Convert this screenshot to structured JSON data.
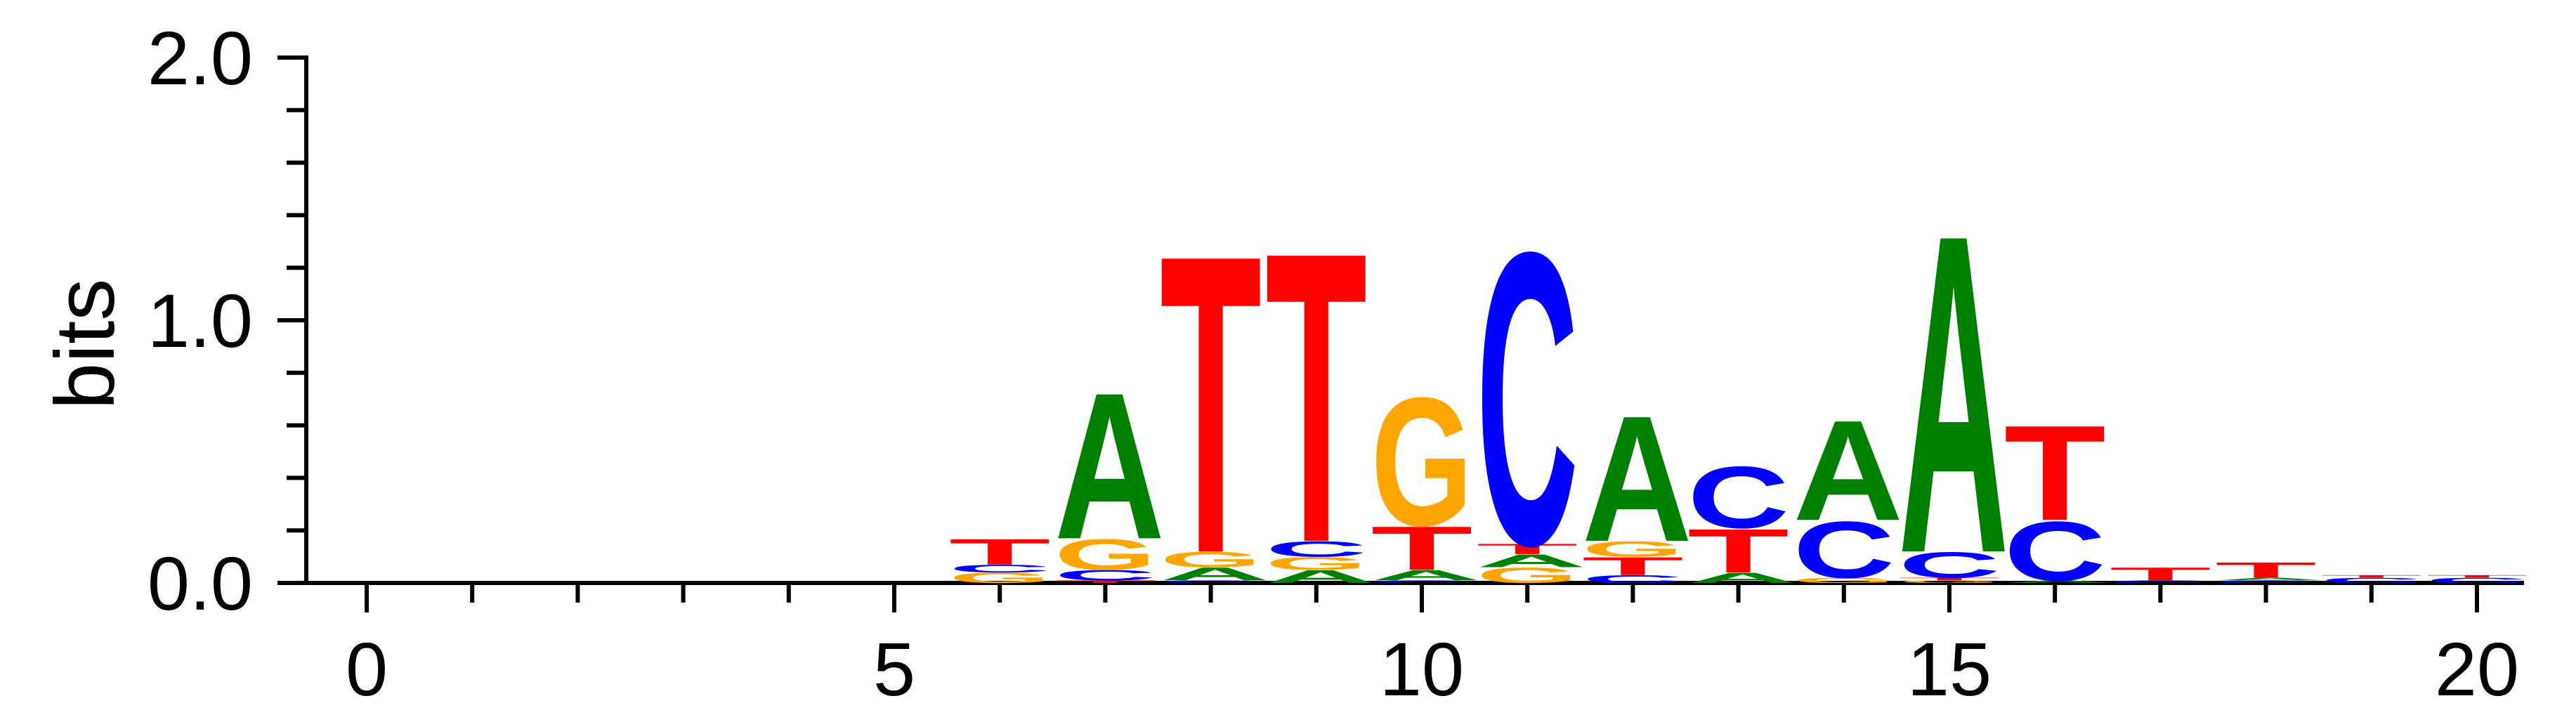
{
  "chart_data": {
    "type": "sequence-logo",
    "ylabel": "bits",
    "ylim": [
      0,
      2
    ],
    "yticks": [
      "0.0",
      "1.0",
      "2.0"
    ],
    "xticks": [
      "0",
      "5",
      "10",
      "15",
      "20"
    ],
    "colors": {
      "A": "#008000",
      "C": "#0000ff",
      "G": "#ffa500",
      "T": "#ff0000"
    },
    "positions": [
      {
        "pos": 6,
        "stack": [
          [
            "G",
            0.04
          ],
          [
            "C",
            0.03
          ],
          [
            "T",
            0.1
          ]
        ]
      },
      {
        "pos": 7,
        "stack": [
          [
            "T",
            0.01
          ],
          [
            "C",
            0.04
          ],
          [
            "G",
            0.12
          ],
          [
            "A",
            0.57
          ]
        ]
      },
      {
        "pos": 8,
        "stack": [
          [
            "C",
            0.01
          ],
          [
            "A",
            0.05
          ],
          [
            "G",
            0.06
          ],
          [
            "T",
            1.16
          ]
        ]
      },
      {
        "pos": 9,
        "stack": [
          [
            "A",
            0.05
          ],
          [
            "G",
            0.05
          ],
          [
            "C",
            0.06
          ],
          [
            "T",
            1.13
          ]
        ]
      },
      {
        "pos": 10,
        "stack": [
          [
            "C",
            0.01
          ],
          [
            "A",
            0.04
          ],
          [
            "T",
            0.17
          ],
          [
            "G",
            0.5
          ]
        ]
      },
      {
        "pos": 11,
        "stack": [
          [
            "G",
            0.06
          ],
          [
            "A",
            0.05
          ],
          [
            "T",
            0.04
          ],
          [
            "C",
            1.14
          ]
        ]
      },
      {
        "pos": 12,
        "stack": [
          [
            "C",
            0.03
          ],
          [
            "T",
            0.07
          ],
          [
            "G",
            0.06
          ],
          [
            "A",
            0.49
          ]
        ]
      },
      {
        "pos": 13,
        "stack": [
          [
            "A",
            0.04
          ],
          [
            "T",
            0.17
          ],
          [
            "C",
            0.24
          ]
        ]
      },
      {
        "pos": 14,
        "stack": [
          [
            "G",
            0.02
          ],
          [
            "C",
            0.22
          ],
          [
            "A",
            0.39
          ]
        ]
      },
      {
        "pos": 15,
        "stack": [
          [
            "G",
            0.01
          ],
          [
            "T",
            0.01
          ],
          [
            "C",
            0.1
          ],
          [
            "A",
            1.24
          ]
        ]
      },
      {
        "pos": 16,
        "stack": [
          [
            "A",
            0.01
          ],
          [
            "C",
            0.23
          ],
          [
            "T",
            0.37
          ]
        ]
      },
      {
        "pos": 17,
        "stack": [
          [
            "C",
            0.01
          ],
          [
            "T",
            0.05
          ]
        ]
      },
      {
        "pos": 18,
        "stack": [
          [
            "C",
            0.01
          ],
          [
            "A",
            0.01
          ],
          [
            "T",
            0.06
          ]
        ]
      },
      {
        "pos": 19,
        "stack": [
          [
            "C",
            0.02
          ],
          [
            "T",
            0.01
          ]
        ]
      },
      {
        "pos": 20,
        "stack": [
          [
            "C",
            0.02
          ],
          [
            "T",
            0.01
          ]
        ]
      }
    ]
  }
}
